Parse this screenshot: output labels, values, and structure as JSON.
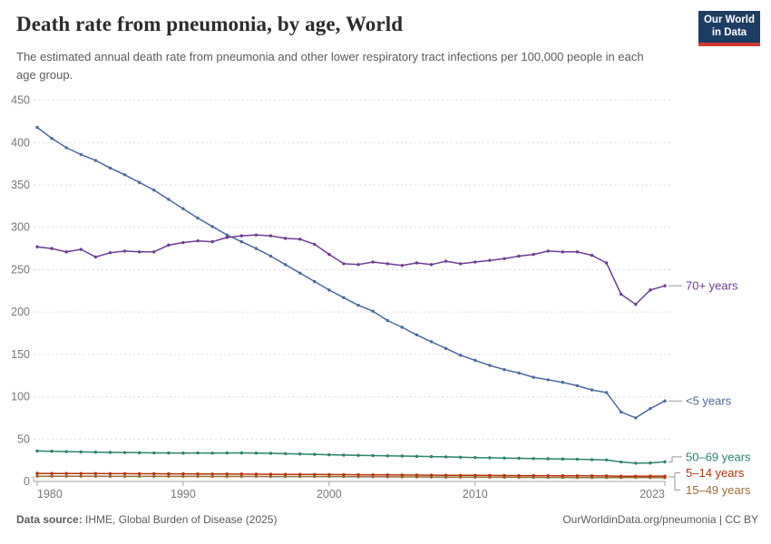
{
  "header": {
    "title": "Death rate from pneumonia, by age, World",
    "subtitle": "The estimated annual death rate from pneumonia and other lower respiratory tract infections per 100,000 people in each age group.",
    "logo": {
      "line1": "Our World",
      "line2": "in Data",
      "bg_color": "#1d3d63",
      "stripe_color": "#cf3a33"
    }
  },
  "footer": {
    "source_label": "Data source:",
    "source_text": " IHME, Global Burden of Disease (2025)",
    "right_text": "OurWorldinData.org/pneumonia | CC BY"
  },
  "chart_data": {
    "type": "line",
    "title": "Death rate from pneumonia, by age, World",
    "xlabel": "",
    "ylabel": "",
    "xlim": [
      1980,
      2023
    ],
    "ylim": [
      0,
      450
    ],
    "x_ticks": [
      1980,
      1990,
      2000,
      2010,
      2023
    ],
    "y_ticks": [
      0,
      50,
      100,
      150,
      200,
      250,
      300,
      350,
      400,
      450
    ],
    "grid": true,
    "legend_position": "right-of-line-ends",
    "x": [
      1980,
      1981,
      1982,
      1983,
      1984,
      1985,
      1986,
      1987,
      1988,
      1989,
      1990,
      1991,
      1992,
      1993,
      1994,
      1995,
      1996,
      1997,
      1998,
      1999,
      2000,
      2001,
      2002,
      2003,
      2004,
      2005,
      2006,
      2007,
      2008,
      2009,
      2010,
      2011,
      2012,
      2013,
      2014,
      2015,
      2016,
      2017,
      2018,
      2019,
      2020,
      2021,
      2022,
      2023
    ],
    "series": [
      {
        "name": "70+ years",
        "color": "#6d3e91",
        "values": [
          277,
          275,
          271,
          274,
          265,
          270,
          272,
          271,
          271,
          279,
          282,
          284,
          283,
          288,
          290,
          291,
          290,
          287,
          286,
          280,
          268,
          257,
          256,
          259,
          257,
          255,
          258,
          256,
          260,
          257,
          259,
          261,
          263,
          266,
          268,
          272,
          271,
          271,
          267,
          258,
          221,
          209,
          226,
          231
        ]
      },
      {
        "name": "<5 years",
        "color": "#4c6a9c",
        "values": [
          418,
          405,
          394,
          386,
          379,
          370,
          362,
          353,
          344,
          333,
          322,
          311,
          301,
          291,
          283,
          275,
          266,
          256,
          246,
          236,
          226,
          217,
          208,
          201,
          190,
          182,
          173,
          165,
          157,
          149,
          143,
          137,
          132,
          128,
          123,
          120,
          117,
          113,
          108,
          105,
          82,
          75,
          86,
          95
        ]
      },
      {
        "name": "50–69 years",
        "color": "#2c8465",
        "values": [
          36,
          35.6,
          35.2,
          34.9,
          34.6,
          34.3,
          34.1,
          33.9,
          33.7,
          33.6,
          33.5,
          33.6,
          33.4,
          33.6,
          33.7,
          33.5,
          33.2,
          32.8,
          32.4,
          32,
          31.5,
          31.1,
          30.8,
          30.5,
          30.2,
          30,
          29.6,
          29.3,
          29,
          28.6,
          28.2,
          27.9,
          27.6,
          27.3,
          27,
          26.8,
          26.5,
          26.2,
          25.8,
          25.4,
          23,
          21.5,
          21.8,
          23.2
        ]
      },
      {
        "name": "5–14 years",
        "color": "#b13507",
        "values": [
          9.5,
          9.4,
          9.4,
          9.3,
          9.3,
          9.2,
          9.2,
          9.1,
          9.1,
          9,
          9,
          8.9,
          8.8,
          8.8,
          8.7,
          8.6,
          8.5,
          8.4,
          8.3,
          8.2,
          8.1,
          8,
          7.9,
          7.8,
          7.7,
          7.6,
          7.5,
          7.4,
          7.3,
          7.2,
          7.2,
          7.1,
          7,
          6.9,
          6.9,
          6.8,
          6.7,
          6.6,
          6.6,
          6.5,
          6.2,
          6.1,
          6.3,
          6.2
        ]
      },
      {
        "name": "15–49 years",
        "color": "#996d39",
        "values": [
          6.2,
          6.2,
          6.1,
          6.1,
          6.1,
          6,
          6,
          6,
          6,
          6,
          6,
          6,
          5.9,
          5.9,
          5.9,
          5.9,
          5.8,
          5.8,
          5.8,
          5.8,
          5.8,
          5.7,
          5.6,
          5.5,
          5.5,
          5.4,
          5.3,
          5.2,
          5.1,
          5.1,
          5,
          4.9,
          4.9,
          4.8,
          4.8,
          4.7,
          4.7,
          4.6,
          4.6,
          4.5,
          4.6,
          4.7,
          4.5,
          4.4
        ]
      }
    ]
  }
}
